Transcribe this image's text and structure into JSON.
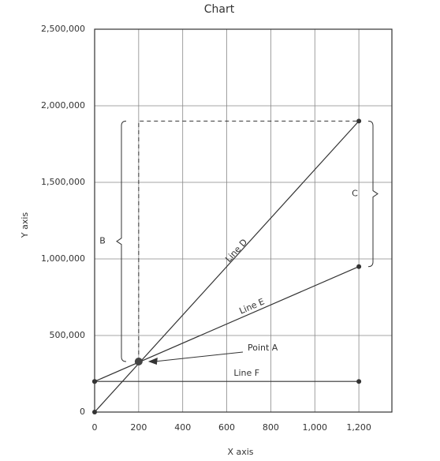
{
  "chart_data": {
    "type": "line",
    "title": "Chart",
    "x_label": "X axis",
    "y_label": "Y axis",
    "xlim": [
      0,
      1350
    ],
    "xticks": [
      0,
      200,
      400,
      600,
      800,
      {
        "value": 1000,
        "label": "1,000"
      },
      {
        "value": 1200,
        "label": "1,200"
      }
    ],
    "ylim": [
      0,
      2500000
    ],
    "yticks": [
      0,
      {
        "value": 500000,
        "label": "500,000"
      },
      {
        "value": 1000000,
        "label": "1,000,000"
      },
      {
        "value": 1500000,
        "label": "1,500,000"
      },
      {
        "value": 2000000,
        "label": "2,000,000"
      },
      {
        "value": 2500000,
        "label": "2,500,000"
      }
    ],
    "grid": true,
    "series": [
      {
        "name": "Line D",
        "color": "#333333",
        "x": [
          0,
          1200
        ],
        "values": [
          0,
          1900000
        ]
      },
      {
        "name": "Line E",
        "color": "#333333",
        "x": [
          0,
          1200
        ],
        "values": [
          200000,
          950000
        ]
      },
      {
        "name": "Line F",
        "color": "#333333",
        "x": [
          0,
          1200
        ],
        "values": [
          200000,
          200000
        ]
      }
    ],
    "point": {
      "name": "Point A",
      "x": 200,
      "y": 330000,
      "color": "#444444"
    },
    "braces": [
      "B",
      "C"
    ]
  }
}
